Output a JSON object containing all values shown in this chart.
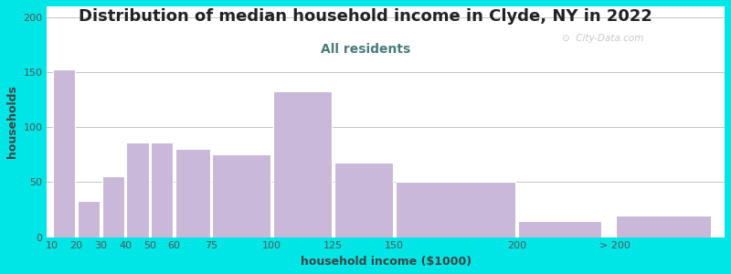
{
  "title": "Distribution of median household income in Clyde, NY in 2022",
  "subtitle": "All residents",
  "xlabel": "household income ($1000)",
  "ylabel": "households",
  "bar_labels": [
    "10",
    "20",
    "30",
    "40",
    "50",
    "60",
    "75",
    "100",
    "125",
    "150",
    "200",
    "> 200"
  ],
  "bar_values": [
    153,
    33,
    55,
    86,
    86,
    80,
    75,
    133,
    68,
    50,
    15,
    20
  ],
  "bar_color": "#c9b8d8",
  "bar_edgecolor": "#ffffff",
  "bar_linewidth": 0.8,
  "ylim": [
    0,
    210
  ],
  "yticks": [
    0,
    50,
    100,
    150,
    200
  ],
  "background_outer": "#00e5e5",
  "title_fontsize": 13,
  "title_color": "#222222",
  "subtitle_fontsize": 10,
  "subtitle_color": "#4a7a7a",
  "axis_label_fontsize": 9,
  "axis_label_color": "#444444",
  "watermark": "City-Data.com",
  "figsize": [
    8.0,
    3.0
  ],
  "dpi": 100,
  "bar_left_edges": [
    10,
    20,
    30,
    40,
    50,
    60,
    75,
    100,
    125,
    150,
    200,
    240
  ],
  "bar_widths": [
    10,
    10,
    10,
    10,
    10,
    15,
    25,
    25,
    25,
    50,
    35,
    40
  ]
}
